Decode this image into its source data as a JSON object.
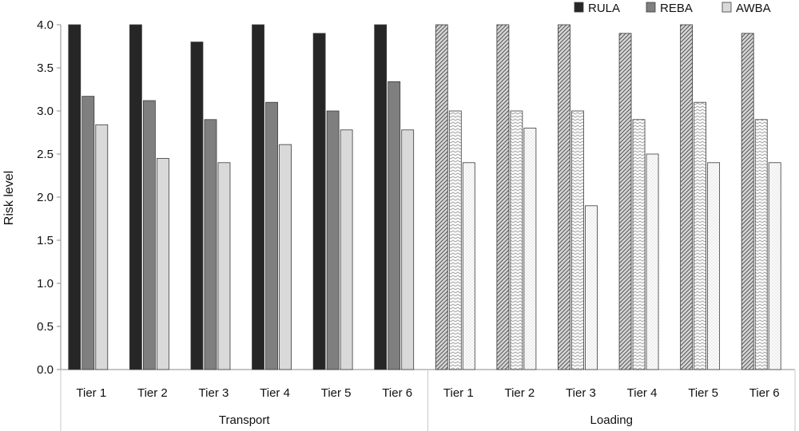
{
  "chart_data": {
    "type": "bar",
    "ylabel": "Risk level",
    "ylim": [
      0,
      4.0
    ],
    "yticks": [
      "0.0",
      "0.5",
      "1.0",
      "1.5",
      "2.0",
      "2.5",
      "3.0",
      "3.5",
      "4.0"
    ],
    "groups": [
      {
        "label": "Transport",
        "categories": [
          "Tier 1",
          "Tier 2",
          "Tier 3",
          "Tier 4",
          "Tier 5",
          "Tier 6"
        ]
      },
      {
        "label": "Loading",
        "categories": [
          "Tier 1",
          "Tier 2",
          "Tier 3",
          "Tier 4",
          "Tier 5",
          "Tier 6"
        ]
      }
    ],
    "series": [
      {
        "name": "RULA",
        "values": [
          4.0,
          4.0,
          3.8,
          4.0,
          3.9,
          4.0,
          4.0,
          4.0,
          4.0,
          3.9,
          4.0,
          3.9
        ]
      },
      {
        "name": "REBA",
        "values": [
          3.17,
          3.12,
          2.9,
          3.1,
          3.0,
          3.34,
          3.0,
          3.0,
          3.0,
          2.9,
          3.1,
          2.9
        ]
      },
      {
        "name": "AWBA",
        "values": [
          2.84,
          2.45,
          2.4,
          2.61,
          2.78,
          2.78,
          2.4,
          2.8,
          1.9,
          2.5,
          2.4,
          2.4
        ]
      }
    ],
    "legend": {
      "position": "top-right"
    },
    "grid": false,
    "colors": {
      "transport": {
        "RULA": "#262626",
        "REBA": "#7f7f7f",
        "AWBA": "#d9d9d9"
      },
      "loading": {
        "RULA": "#c9c9c9",
        "REBA": "#f2f2f2",
        "AWBA": "#f7f7f7"
      },
      "legend": {
        "RULA": "#262626",
        "REBA": "#7f7f7f",
        "AWBA": "#d9d9d9"
      }
    }
  }
}
